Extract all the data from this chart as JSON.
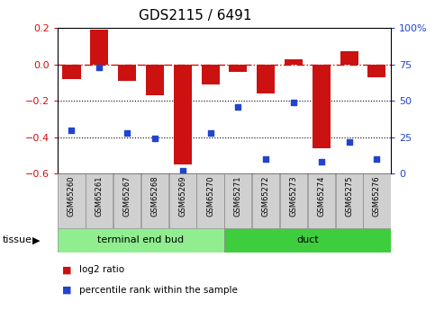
{
  "title": "GDS2115 / 6491",
  "samples": [
    "GSM65260",
    "GSM65261",
    "GSM65267",
    "GSM65268",
    "GSM65269",
    "GSM65270",
    "GSM65271",
    "GSM65272",
    "GSM65273",
    "GSM65274",
    "GSM65275",
    "GSM65276"
  ],
  "log2_ratio": [
    -0.08,
    0.19,
    -0.09,
    -0.17,
    -0.55,
    -0.11,
    -0.04,
    -0.16,
    0.03,
    -0.46,
    0.07,
    -0.07
  ],
  "percentile_rank": [
    30,
    73,
    28,
    24,
    2,
    28,
    46,
    10,
    49,
    8,
    22,
    10
  ],
  "groups": [
    {
      "label": "terminal end bud",
      "start": 0,
      "end": 6,
      "color": "#90ee90"
    },
    {
      "label": "duct",
      "start": 6,
      "end": 12,
      "color": "#3dcd3d"
    }
  ],
  "bar_color": "#cc1111",
  "dot_color": "#2244cc",
  "ylim_left": [
    -0.6,
    0.2
  ],
  "ylim_right": [
    0,
    100
  ],
  "hline_zero_color": "#cc1111",
  "hline_dotted_color": "black",
  "background_color": "#ffffff",
  "legend_items": [
    {
      "label": "log2 ratio",
      "color": "#cc1111"
    },
    {
      "label": "percentile rank within the sample",
      "color": "#2244cc"
    }
  ],
  "title_fontsize": 11,
  "axis_fontsize": 8,
  "label_fontsize": 6,
  "tissue_fontsize": 8,
  "legend_fontsize": 7.5
}
